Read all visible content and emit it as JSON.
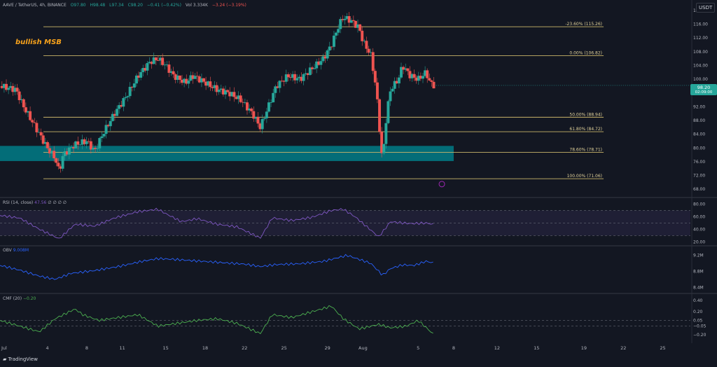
{
  "header": {
    "symbol": "AAVE / TetherUS, 4h, BINANCE",
    "open": "O97.80",
    "high": "H98.48",
    "low": "L97.34",
    "close": "C98.20",
    "change": "−0.41 (−0.42%)",
    "volume": "Vol 3.334K",
    "vol_change": "−3.24 (−3.19%)"
  },
  "currency_label": "USDT",
  "annotation": "bullish MSB",
  "price_badge": {
    "price": "98.20",
    "countdown": "02:09:00"
  },
  "tradingview_label": "TradingView",
  "colors": {
    "up": "#26a69a",
    "down": "#ef5350",
    "fib": "#c9b56a",
    "zone": "#00838f",
    "rsi": "#7e57c2",
    "obv": "#2962ff",
    "cmf": "#4caf50"
  },
  "chart_data": [
    {
      "type": "line",
      "title": "AAVE / TetherUS, 4h, BINANCE",
      "x_tick_labels": [
        "Jul",
        "4",
        "8",
        "11",
        "15",
        "18",
        "22",
        "25",
        "29",
        "Aug",
        "5",
        "8",
        "12",
        "15",
        "19",
        "22",
        "25"
      ],
      "y_tick_labels": [
        "120.00",
        "116.00",
        "112.00",
        "108.00",
        "104.00",
        "100.00",
        "96.00",
        "92.00",
        "88.00",
        "84.00",
        "80.00",
        "76.00",
        "72.00",
        "68.00"
      ],
      "ylim": [
        66,
        121
      ],
      "price_path": [
        [
          0,
          98
        ],
        [
          4,
          97
        ],
        [
          6,
          92
        ],
        [
          9,
          86
        ],
        [
          12,
          80
        ],
        [
          14,
          77
        ],
        [
          15,
          73
        ],
        [
          16,
          78
        ],
        [
          19,
          81
        ],
        [
          22,
          82
        ],
        [
          24,
          79
        ],
        [
          26,
          84
        ],
        [
          29,
          90
        ],
        [
          32,
          95
        ],
        [
          35,
          101
        ],
        [
          38,
          105
        ],
        [
          40,
          106
        ],
        [
          42,
          104
        ],
        [
          44,
          101
        ],
        [
          47,
          99
        ],
        [
          49,
          101
        ],
        [
          52,
          99
        ],
        [
          55,
          97
        ],
        [
          58,
          96
        ],
        [
          61,
          94
        ],
        [
          64,
          90
        ],
        [
          66,
          86
        ],
        [
          68,
          92
        ],
        [
          70,
          98
        ],
        [
          73,
          101
        ],
        [
          76,
          100
        ],
        [
          79,
          103
        ],
        [
          82,
          106
        ],
        [
          84,
          110
        ],
        [
          86,
          116
        ],
        [
          87,
          118
        ],
        [
          89,
          117
        ],
        [
          91,
          115
        ],
        [
          92,
          111
        ],
        [
          94,
          107
        ],
        [
          95,
          100
        ],
        [
          96,
          90
        ],
        [
          96.5,
          79
        ],
        [
          97,
          77
        ],
        [
          98,
          90
        ],
        [
          99,
          97
        ],
        [
          101,
          100
        ],
        [
          102,
          104
        ],
        [
          104,
          101
        ],
        [
          106,
          100
        ],
        [
          108,
          102
        ],
        [
          109,
          99
        ],
        [
          110,
          98.2
        ]
      ],
      "fib_levels": [
        {
          "label": "-23.60% (115.26)",
          "price": 115.26
        },
        {
          "label": "0.00% (106.82)",
          "price": 106.82
        },
        {
          "label": "50.00% (88.94)",
          "price": 88.94
        },
        {
          "label": "61.80% (84.72)",
          "price": 84.72
        },
        {
          "label": "78.60% (78.71)",
          "price": 78.71
        },
        {
          "label": "100.00% (71.06)",
          "price": 71.06
        }
      ],
      "demand_zone": [
        76.2,
        80.6
      ],
      "last_price": 98.2
    },
    {
      "type": "line",
      "title": "RSI (14, close)",
      "value_label": "47.56",
      "extra_labels": [
        "∅",
        "∅",
        "∅",
        "∅"
      ],
      "y_tick_labels": [
        "80.00",
        "60.00",
        "40.00",
        "20.00"
      ],
      "ylim": [
        17,
        85
      ],
      "band": [
        30,
        70
      ],
      "values_path": [
        [
          0,
          62
        ],
        [
          5,
          58
        ],
        [
          10,
          40
        ],
        [
          15,
          25
        ],
        [
          19,
          48
        ],
        [
          24,
          45
        ],
        [
          29,
          58
        ],
        [
          35,
          68
        ],
        [
          40,
          72
        ],
        [
          42,
          65
        ],
        [
          46,
          52
        ],
        [
          50,
          57
        ],
        [
          55,
          48
        ],
        [
          60,
          44
        ],
        [
          66,
          26
        ],
        [
          69,
          58
        ],
        [
          74,
          54
        ],
        [
          79,
          59
        ],
        [
          84,
          70
        ],
        [
          87,
          72
        ],
        [
          90,
          60
        ],
        [
          93,
          44
        ],
        [
          96,
          28
        ],
        [
          99,
          52
        ],
        [
          104,
          49
        ],
        [
          108,
          50
        ],
        [
          110,
          47.56
        ]
      ]
    },
    {
      "type": "line",
      "title": "OBV",
      "value_label": "9.008M",
      "y_tick_labels": [
        "9.2M",
        "8.8M",
        "8.4M"
      ],
      "ylim": [
        8.3,
        9.35
      ],
      "values_path": [
        [
          0,
          8.95
        ],
        [
          5,
          8.83
        ],
        [
          10,
          8.68
        ],
        [
          14,
          8.6
        ],
        [
          18,
          8.75
        ],
        [
          24,
          8.82
        ],
        [
          30,
          8.92
        ],
        [
          36,
          9.05
        ],
        [
          40,
          9.12
        ],
        [
          44,
          9.1
        ],
        [
          50,
          9.06
        ],
        [
          56,
          9.02
        ],
        [
          62,
          8.98
        ],
        [
          66,
          8.92
        ],
        [
          70,
          8.97
        ],
        [
          76,
          8.99
        ],
        [
          82,
          9.05
        ],
        [
          86,
          9.15
        ],
        [
          88,
          9.2
        ],
        [
          91,
          9.1
        ],
        [
          94,
          9.0
        ],
        [
          97,
          8.7
        ],
        [
          99,
          8.87
        ],
        [
          102,
          8.96
        ],
        [
          105,
          8.95
        ],
        [
          108,
          9.05
        ],
        [
          110,
          9.01
        ]
      ]
    },
    {
      "type": "line",
      "title": "CMF (20)",
      "value_label": "−0.20",
      "y_tick_labels": [
        "0.40",
        "0.20",
        "0.05",
        "−0.05",
        "−0.20"
      ],
      "ylim": [
        -0.3,
        0.46
      ],
      "values_path": [
        [
          0,
          0.05
        ],
        [
          5,
          -0.05
        ],
        [
          10,
          -0.15
        ],
        [
          14,
          0.08
        ],
        [
          19,
          0.25
        ],
        [
          21,
          0.15
        ],
        [
          25,
          0.05
        ],
        [
          30,
          0.1
        ],
        [
          35,
          0.15
        ],
        [
          40,
          -0.05
        ],
        [
          45,
          0.0
        ],
        [
          50,
          0.05
        ],
        [
          55,
          0.08
        ],
        [
          60,
          0.0
        ],
        [
          66,
          -0.18
        ],
        [
          69,
          0.15
        ],
        [
          74,
          0.1
        ],
        [
          79,
          0.2
        ],
        [
          84,
          0.3
        ],
        [
          87,
          0.08
        ],
        [
          91,
          -0.1
        ],
        [
          96,
          -0.02
        ],
        [
          99,
          -0.08
        ],
        [
          103,
          -0.05
        ],
        [
          106,
          0.05
        ],
        [
          110,
          -0.2
        ]
      ]
    }
  ]
}
